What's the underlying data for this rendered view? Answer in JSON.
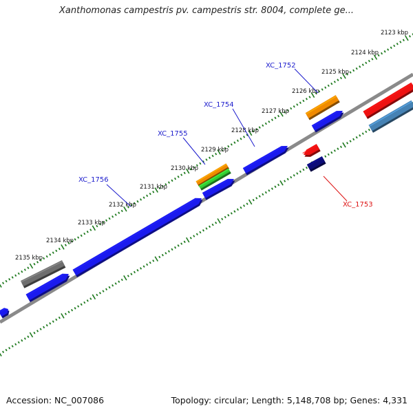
{
  "title": "Xanthomonas campestris pv. campestris str. 8004, complete ge...",
  "footer": {
    "accession": "Accession: NC_007086",
    "summary": "Topology: circular; Length: 5,148,708 bp; Genes: 4,331"
  },
  "colors": {
    "backbone": "#8a8a8a",
    "tick_dots": "#1f7a1f",
    "forward_gene": "#1a1aee",
    "reverse_dark": "#0c0c78",
    "orange": "#f08a00",
    "green": "#33cc33",
    "gray_gene": "#6e6e6e",
    "red_gene": "#ee1111",
    "steel_blue": "#4682b4",
    "label_blue": "#1a1acc",
    "label_red": "#dd1111"
  },
  "ticks": [
    {
      "label": "2123 kbp",
      "kbp": 2123
    },
    {
      "label": "2124 kbp",
      "kbp": 2124
    },
    {
      "label": "2125 kbp",
      "kbp": 2125
    },
    {
      "label": "2126 kbp",
      "kbp": 2126
    },
    {
      "label": "2127 kbp",
      "kbp": 2127
    },
    {
      "label": "2128 kbp",
      "kbp": 2128
    },
    {
      "label": "2129 kbp",
      "kbp": 2129
    },
    {
      "label": "2130 kbp",
      "kbp": 2130
    },
    {
      "label": "2131 kbp",
      "kbp": 2131
    },
    {
      "label": "2132 kbp",
      "kbp": 2132
    },
    {
      "label": "2133 kbp",
      "kbp": 2133
    },
    {
      "label": "2134 kbp",
      "kbp": 2134
    },
    {
      "label": "2135 kbp",
      "kbp": 2135
    }
  ],
  "gene_labels": [
    {
      "name": "XC_1752",
      "color": "#1a1acc"
    },
    {
      "name": "XC_1754",
      "color": "#1a1acc"
    },
    {
      "name": "XC_1755",
      "color": "#1a1acc"
    },
    {
      "name": "XC_1756",
      "color": "#1a1acc"
    },
    {
      "name": "XC_1753",
      "color": "#dd1111"
    }
  ]
}
